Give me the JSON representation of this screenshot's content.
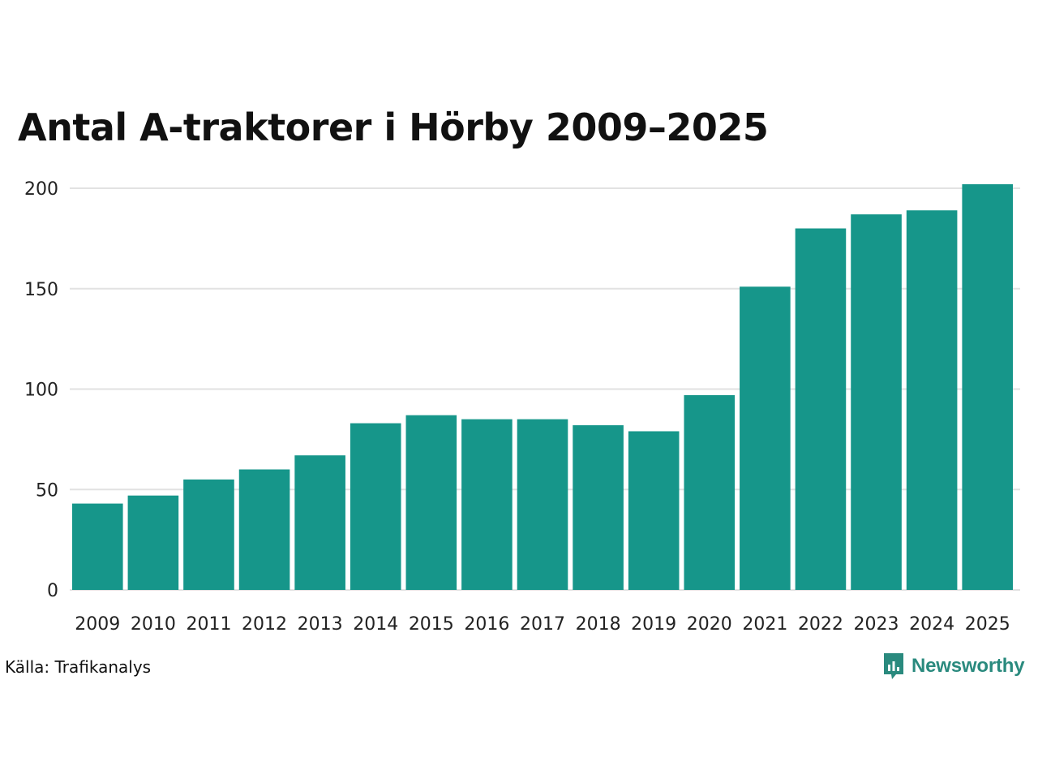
{
  "chart_data": {
    "type": "bar",
    "title": "Antal A-traktorer i Hörby 2009–2025",
    "xlabel": "",
    "ylabel": "",
    "categories": [
      "2009",
      "2010",
      "2011",
      "2012",
      "2013",
      "2014",
      "2015",
      "2016",
      "2017",
      "2018",
      "2019",
      "2020",
      "2021",
      "2022",
      "2023",
      "2024",
      "2025"
    ],
    "values": [
      43,
      47,
      55,
      60,
      67,
      83,
      87,
      85,
      85,
      82,
      79,
      97,
      151,
      180,
      187,
      189,
      202
    ],
    "ylim": [
      0,
      200
    ],
    "yticks": [
      "0",
      "50",
      "100",
      "150",
      "200"
    ],
    "grid": true,
    "bar_color": "#16968a",
    "grid_color": "#e2e2e2"
  },
  "footer": {
    "source": "Källa: Trafikanalys",
    "brand": "Newsworthy",
    "brand_color": "#2a8a7e"
  }
}
